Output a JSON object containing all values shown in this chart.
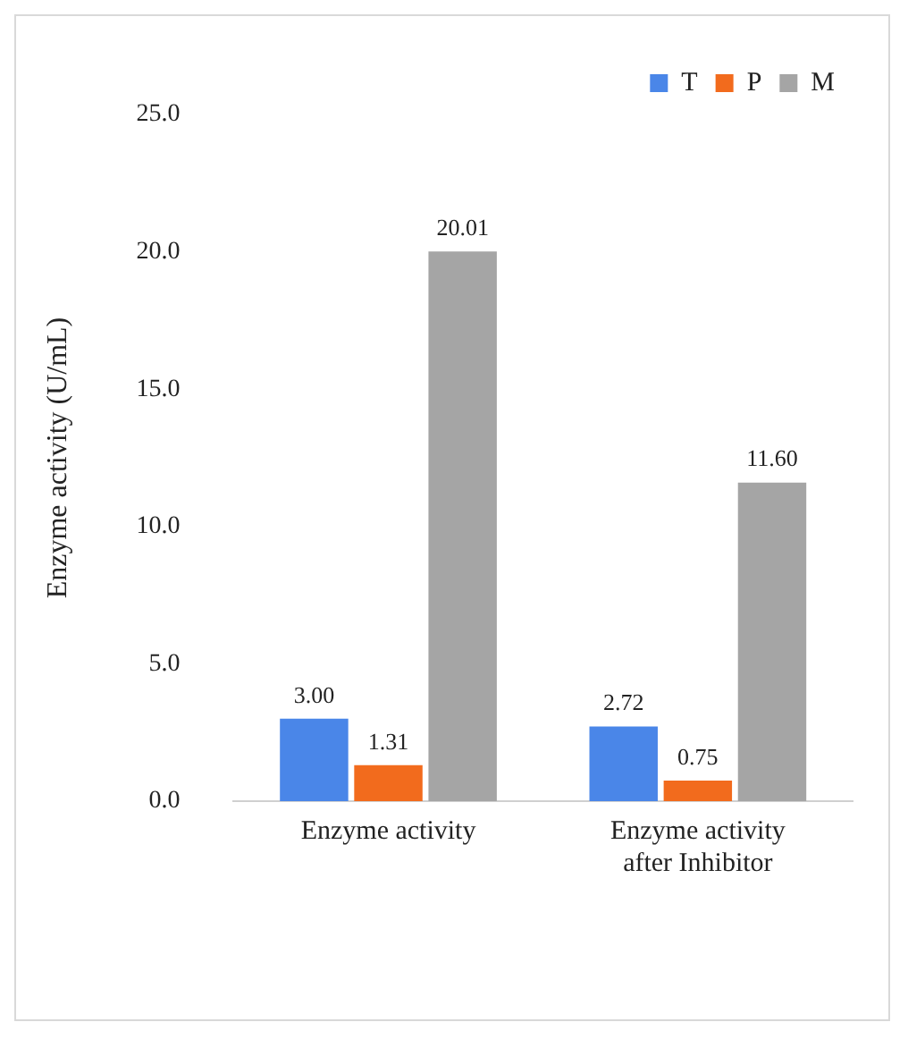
{
  "chart_data": {
    "type": "bar",
    "ylabel": "Enzyme activity (U/mL)",
    "categories": [
      "Enzyme activity",
      "Enzyme activity after Inhibitor"
    ],
    "series": [
      {
        "name": "T",
        "color": "#4a86e8",
        "values": [
          3.0,
          2.72
        ],
        "value_labels": [
          "3.00",
          "2.72"
        ]
      },
      {
        "name": "P",
        "color": "#f26b1d",
        "values": [
          1.31,
          0.75
        ],
        "value_labels": [
          "1.31",
          "0.75"
        ]
      },
      {
        "name": "M",
        "color": "#a5a5a5",
        "values": [
          20.01,
          11.6
        ],
        "value_labels": [
          "20.01",
          "11.60"
        ]
      }
    ],
    "ylim": [
      0,
      25
    ],
    "yticks": [
      {
        "value": 0,
        "label": "0.0"
      },
      {
        "value": 5,
        "label": "5.0"
      },
      {
        "value": 10,
        "label": "10.0"
      },
      {
        "value": 15,
        "label": "15.0"
      },
      {
        "value": 20,
        "label": "20.0"
      },
      {
        "value": 25,
        "label": "25.0"
      }
    ],
    "grid": false,
    "legend": "top right"
  }
}
